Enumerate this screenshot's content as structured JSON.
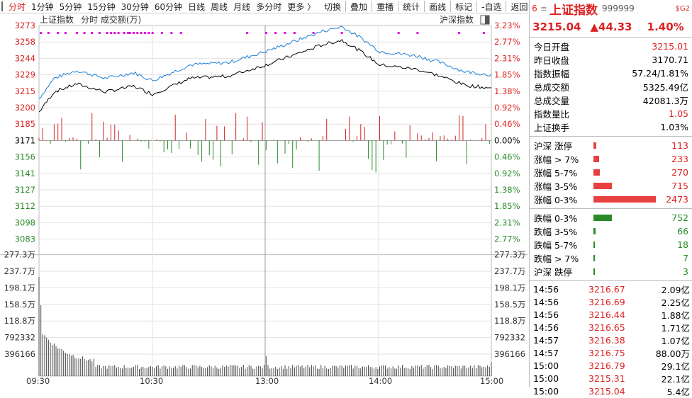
{
  "toolbar": {
    "items": [
      "分时",
      "1分钟",
      "5分钟",
      "15分钟",
      "30分钟",
      "60分钟",
      "日线",
      "周线",
      "月线",
      "多分时",
      "更多 〉"
    ],
    "actions": [
      "切换",
      "叠加",
      "重播",
      "统计",
      "画线",
      "标记",
      "-自选",
      "返回"
    ]
  },
  "chart_header": {
    "left": "上证指数",
    "sub": "分时 成交额(万)",
    "right": "沪深指数"
  },
  "price_axis": {
    "left": [
      "3273",
      "3258",
      "3244",
      "3229",
      "3215",
      "3200",
      "3185",
      "3171",
      "3156",
      "3141",
      "3127",
      "3112",
      "3098",
      "3083"
    ],
    "right": [
      "3.23%",
      "2.77%",
      "2.31%",
      "1.85%",
      "1.38%",
      "0.92%",
      "0.46%",
      "0.00%",
      "0.46%",
      "0.92%",
      "1.38%",
      "1.85%",
      "2.31%",
      "2.77%"
    ]
  },
  "volume_axis": [
    "277.3万",
    "237.7万",
    "198.1万",
    "158.5万",
    "118.8万",
    "792332",
    "396166"
  ],
  "time_axis": [
    "09:30",
    "10:30",
    "13:00",
    "14:00",
    "15:00"
  ],
  "colors": {
    "up": "#d22222",
    "down": "#2a8a2a",
    "line_index": "#1e7fd6",
    "line_avg": "#000000",
    "mark": "#e000e0"
  },
  "quote": {
    "code6": "6",
    "name": "上证指数",
    "code": "999999",
    "tag": "$G2",
    "price": "3215.04",
    "change": "▲44.33",
    "pct": "1.40%"
  },
  "stats": [
    {
      "label": "今日开盘",
      "value": "3215.01",
      "color": "red"
    },
    {
      "label": "昨日收盘",
      "value": "3170.71",
      "color": "black"
    },
    {
      "label": "指数振幅",
      "value": "57.24/1.81%",
      "color": "black"
    },
    {
      "label": "总成交额",
      "value": "5325.49亿",
      "color": "black"
    },
    {
      "label": "总成交量",
      "value": "42081.3万",
      "color": "black"
    },
    {
      "label": "指数量比",
      "value": "1.05",
      "color": "red"
    },
    {
      "label": "上证换手",
      "value": "1.03%",
      "color": "black"
    }
  ],
  "breadth_up": [
    {
      "label": "沪深 涨停",
      "value": "113",
      "bar": 0.045
    },
    {
      "label": "涨幅 > 7%",
      "value": "233",
      "bar": 0.09
    },
    {
      "label": "涨幅 5-7%",
      "value": "270",
      "bar": 0.105
    },
    {
      "label": "涨幅 3-5%",
      "value": "715",
      "bar": 0.29
    },
    {
      "label": "涨幅 0-3%",
      "value": "2473",
      "bar": 1.0
    }
  ],
  "breadth_down": [
    {
      "label": "跌幅 0-3%",
      "value": "752",
      "bar": 0.3
    },
    {
      "label": "跌幅 3-5%",
      "value": "66",
      "bar": 0.03
    },
    {
      "label": "跌幅 5-7%",
      "value": "18",
      "bar": 0.01
    },
    {
      "label": "跌幅 > 7%",
      "value": "7",
      "bar": 0.005
    },
    {
      "label": "沪深 跌停",
      "value": "3",
      "bar": 0.003
    }
  ],
  "ticks": [
    {
      "time": "14:56",
      "price": "3216.67",
      "amount": "2.09亿"
    },
    {
      "time": "14:56",
      "price": "3216.69",
      "amount": "2.25亿"
    },
    {
      "time": "14:56",
      "price": "3216.44",
      "amount": "1.88亿"
    },
    {
      "time": "14:56",
      "price": "3216.65",
      "amount": "1.71亿"
    },
    {
      "time": "14:57",
      "price": "3216.38",
      "amount": "1.07亿"
    },
    {
      "time": "14:57",
      "price": "3216.75",
      "amount": "88.00万"
    },
    {
      "time": "15:00",
      "price": "3216.79",
      "amount": "29.1亿"
    },
    {
      "time": "15:00",
      "price": "3215.31",
      "amount": "22.1亿"
    },
    {
      "time": "15:00",
      "price": "3215.04",
      "amount": "5.4亿"
    }
  ]
}
